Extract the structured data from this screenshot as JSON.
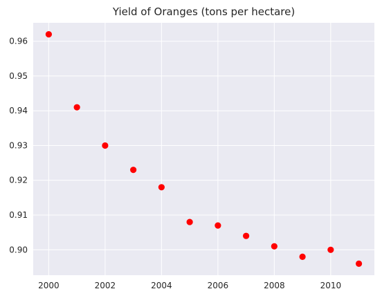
{
  "chart_data": {
    "type": "scatter",
    "title": "Yield of Oranges (tons per hectare)",
    "xlabel": "",
    "ylabel": "",
    "x": [
      2000,
      2001,
      2002,
      2003,
      2004,
      2005,
      2006,
      2007,
      2008,
      2009,
      2010,
      2011
    ],
    "y": [
      0.962,
      0.941,
      0.93,
      0.923,
      0.918,
      0.908,
      0.907,
      0.904,
      0.901,
      0.898,
      0.9,
      0.896
    ],
    "xlim": [
      1999.45,
      2011.55
    ],
    "ylim": [
      0.8927,
      0.9653
    ],
    "xticks": [
      2000,
      2002,
      2004,
      2006,
      2008,
      2010
    ],
    "xtick_labels": [
      "2000",
      "2002",
      "2004",
      "2006",
      "2008",
      "2010"
    ],
    "yticks": [
      0.9,
      0.91,
      0.92,
      0.93,
      0.94,
      0.95,
      0.96
    ],
    "ytick_labels": [
      "0.90",
      "0.91",
      "0.92",
      "0.93",
      "0.94",
      "0.95",
      "0.96"
    ],
    "grid": true,
    "legend": "none",
    "colors": {
      "background": "#eaeaf2",
      "grid": "#ffffff",
      "marker": "#ff0000"
    }
  }
}
